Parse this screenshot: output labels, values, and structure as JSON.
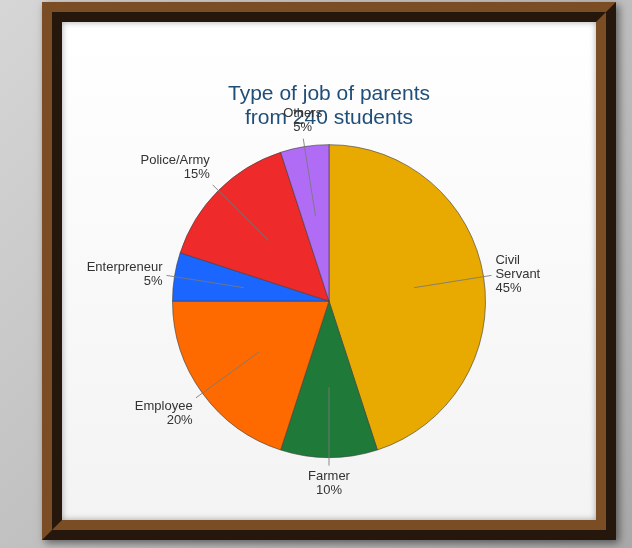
{
  "chart_data": {
    "type": "pie",
    "title": [
      "Type of job of parents",
      "from 240 students"
    ],
    "categories": [
      "Civil Servant",
      "Farmer",
      "Employee",
      "Enterpreneur",
      "Police/Army",
      "Others"
    ],
    "values": [
      45,
      10,
      20,
      5,
      15,
      5
    ],
    "value_labels": [
      "45%",
      "10%",
      "20%",
      "5%",
      "15%",
      "5%"
    ],
    "colors": [
      "#e8a900",
      "#1f7a3a",
      "#ff6a00",
      "#1a66ff",
      "#ee2a2a",
      "#b06cf5"
    ],
    "data_labels": true
  }
}
